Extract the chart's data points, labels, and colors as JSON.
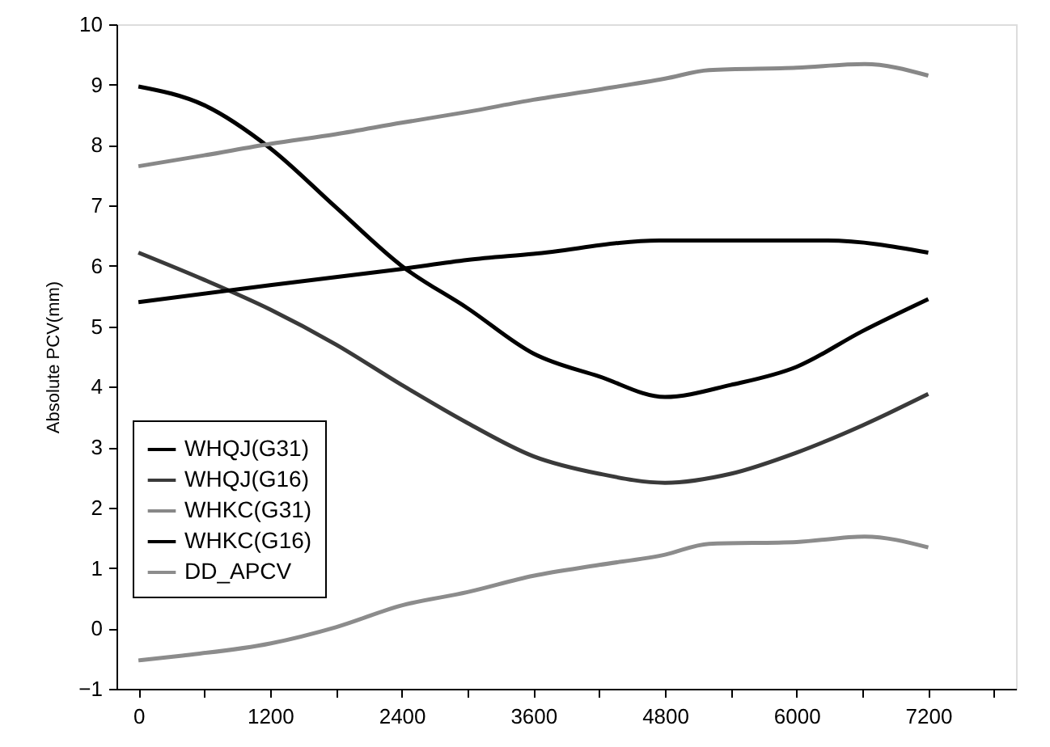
{
  "chart_data": {
    "type": "line",
    "ylabel": "Absolute PCV(mm)",
    "xlim": [
      -200,
      8000
    ],
    "xticks": [
      0,
      {
        "value": 600,
        "label": null
      },
      1200,
      {
        "value": 1800,
        "label": null
      },
      2400,
      {
        "value": 3000,
        "label": null
      },
      3600,
      {
        "value": 4200,
        "label": null
      },
      4800,
      {
        "value": 5400,
        "label": null
      },
      6000,
      {
        "value": 6600,
        "label": null
      },
      7200,
      {
        "value": 7800,
        "label": null
      }
    ],
    "ylim": [
      -1,
      10
    ],
    "yticks": [
      -1,
      0,
      1,
      2,
      3,
      4,
      5,
      6,
      7,
      8,
      9,
      10
    ],
    "grid": false,
    "legend": "bottom left",
    "marker": "none",
    "line_style": "solid",
    "series": [
      {
        "name": "WHQJ(G31)",
        "color": "#000000",
        "x": [
          0,
          600,
          1200,
          1800,
          2400,
          3000,
          3600,
          4200,
          4800,
          5400,
          6000,
          6600,
          7200
        ],
        "values": [
          8.97,
          8.66,
          7.95,
          6.97,
          6.0,
          5.3,
          4.55,
          4.17,
          3.83,
          4.03,
          4.33,
          4.92,
          5.45
        ]
      },
      {
        "name": "WHQJ(G16)",
        "color": "#3a3a3a",
        "x": [
          0,
          600,
          1200,
          1800,
          2400,
          3000,
          3600,
          4200,
          4800,
          5400,
          6000,
          6600,
          7200
        ],
        "values": [
          6.22,
          5.77,
          5.28,
          4.7,
          4.03,
          3.4,
          2.85,
          2.56,
          2.41,
          2.56,
          2.91,
          3.36,
          3.88
        ]
      },
      {
        "name": "WHKC(G31)",
        "color": "#888888",
        "x": [
          0,
          600,
          1200,
          1800,
          2400,
          3000,
          3600,
          4200,
          4800,
          5200,
          6000,
          6620,
          7200
        ],
        "values": [
          7.65,
          7.83,
          8.02,
          8.18,
          8.37,
          8.55,
          8.75,
          8.92,
          9.1,
          9.24,
          9.28,
          9.34,
          9.15
        ]
      },
      {
        "name": "WHKC(G16)",
        "color": "#000000",
        "x": [
          0,
          1200,
          2400,
          3000,
          3600,
          4750,
          6280,
          7200
        ],
        "values": [
          5.4,
          5.68,
          5.95,
          6.1,
          6.2,
          6.42,
          6.42,
          6.22
        ]
      },
      {
        "name": "DD_APCV",
        "color": "#8c8c8c",
        "x": [
          0,
          400,
          1200,
          1800,
          2400,
          3000,
          3600,
          4200,
          4800,
          5200,
          6000,
          6620,
          7200
        ],
        "values": [
          -0.53,
          -0.45,
          -0.25,
          0.02,
          0.38,
          0.6,
          0.87,
          1.05,
          1.22,
          1.4,
          1.43,
          1.52,
          1.34
        ]
      }
    ]
  }
}
